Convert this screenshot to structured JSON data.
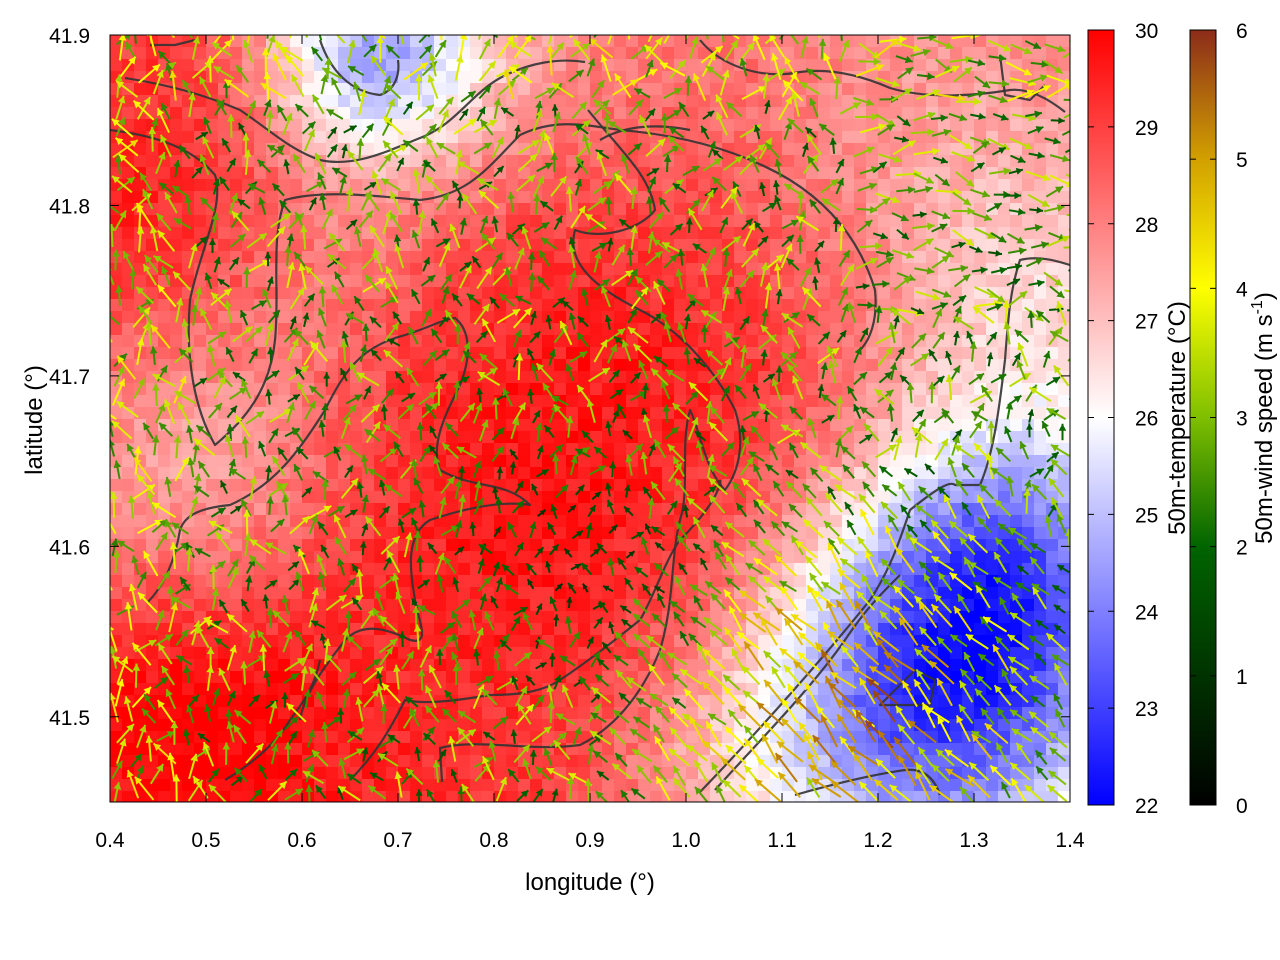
{
  "chart_data": {
    "type": "heatmap",
    "title": "",
    "xlabel": "longitude (°)",
    "ylabel": "latitude (°)",
    "xlim": [
      0.4,
      1.4
    ],
    "ylim": [
      41.45,
      41.9
    ],
    "x_ticks": [
      "0.4",
      "0.5",
      "0.6",
      "0.7",
      "0.8",
      "0.9",
      "1.0",
      "1.1",
      "1.2",
      "1.3",
      "1.4"
    ],
    "x_tick_values": [
      0.4,
      0.5,
      0.6,
      0.7,
      0.8,
      0.9,
      1.0,
      1.1,
      1.2,
      1.3,
      1.4
    ],
    "y_ticks": [
      "41.5",
      "41.6",
      "41.7",
      "41.8",
      "41.9"
    ],
    "y_tick_values": [
      41.5,
      41.6,
      41.7,
      41.8,
      41.9
    ],
    "grid": false,
    "layers": {
      "field": {
        "name": "50m-temperature",
        "units": "°C",
        "colorbar_label": "50m-temperature (°C)",
        "range": [
          22,
          30
        ],
        "colorbar_ticks": [
          "22",
          "23",
          "24",
          "25",
          "26",
          "27",
          "28",
          "29",
          "30"
        ],
        "colorbar_tick_values": [
          22,
          23,
          24,
          25,
          26,
          27,
          28,
          29,
          30
        ],
        "palette": [
          "#0000ff",
          "#ffffff",
          "#ff0000"
        ],
        "description": "warm core (~29–30 °C) over the interior, cool pockets (~23–24 °C) in the north-centre and south-east"
      },
      "vectors": {
        "name": "50m-wind speed",
        "colorbar_label_main": "50m-wind speed (m s",
        "colorbar_label_sup": "-1",
        "colorbar_label_end": ")",
        "range": [
          0,
          6
        ],
        "colorbar_ticks": [
          "0",
          "1",
          "2",
          "3",
          "4",
          "5",
          "6"
        ],
        "colorbar_tick_values": [
          0,
          1,
          2,
          3,
          4,
          5,
          6
        ],
        "palette": [
          "#000000",
          "#006400",
          "#7fbf00",
          "#ffff00",
          "#d2a000",
          "#8b2c1a"
        ],
        "description": "dense arrow field, mostly 1–4 m/s, stronger (4–6 m/s) north-westward flow in the south-east"
      },
      "contours": {
        "color": "#333333",
        "description": "dark grey terrain / boundary contour lines"
      }
    },
    "legend": "right"
  }
}
